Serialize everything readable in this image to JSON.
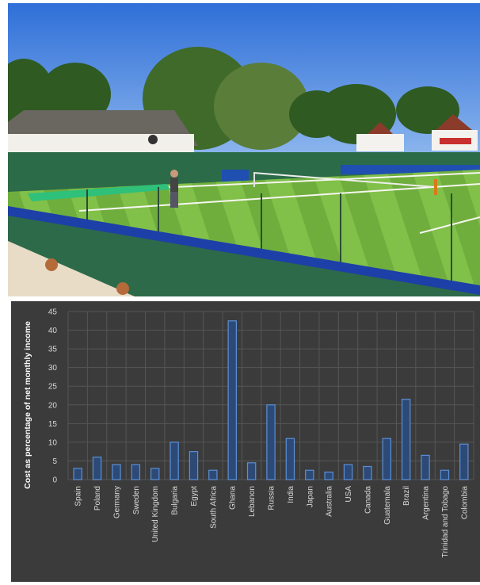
{
  "photo": {
    "subject": "tennis-court-photo"
  },
  "colors": {
    "panel_bg": "#3b3b3b",
    "grid": "#565656",
    "bar_fill": "#2d4a77",
    "bar_stroke": "#5b8fd6",
    "text": "#d8d8d8"
  },
  "chart_data": {
    "type": "bar",
    "title": "",
    "xlabel": "",
    "ylabel": "Cost as percentage of net monthly income",
    "ylim": [
      0,
      45
    ],
    "yticks": [
      0,
      5,
      10,
      15,
      20,
      25,
      30,
      35,
      40,
      45
    ],
    "grid": true,
    "categories": [
      "Spain",
      "Poland",
      "Germany",
      "Sweden",
      "United Kingdom",
      "Bulgaria",
      "Egypt",
      "South Africa",
      "Ghana",
      "Lebanon",
      "Russia",
      "India",
      "Japan",
      "Australia",
      "USA",
      "Canada",
      "Guatemala",
      "Brazil",
      "Argentina",
      "Trinidad and Tobago",
      "Colombia"
    ],
    "values": [
      3,
      6,
      4,
      4,
      3,
      10,
      7.5,
      2.5,
      42.5,
      4.5,
      20,
      11,
      2.5,
      2,
      4,
      3.5,
      11,
      21.5,
      6.5,
      2.5,
      9.5
    ]
  }
}
